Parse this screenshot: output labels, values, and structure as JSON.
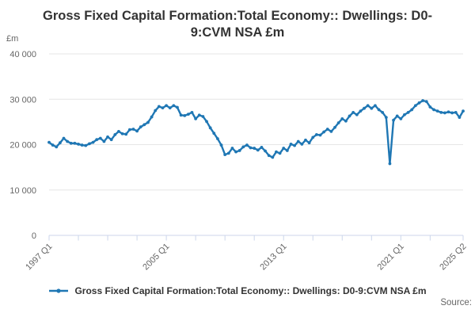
{
  "header": {
    "title": "Gross Fixed Capital Formation:Total Economy:: Dwellings: D0-9:CVM NSA £m"
  },
  "legend": {
    "label": "Gross Fixed Capital Formation:Total Economy:: Dwellings: D0-9:CVM NSA £m",
    "marker": "line-with-dot"
  },
  "footer": {
    "source_label": "Source:"
  },
  "colors": {
    "series": "#1f77b4",
    "gridline": "#e6e6e6",
    "axis_line": "#ccd6eb",
    "tick_label": "#666666",
    "title_text": "#333333"
  },
  "chart_data": {
    "type": "line",
    "title": "Gross Fixed Capital Formation:Total Economy:: Dwellings: D0-9:CVM NSA £m",
    "xlabel": "",
    "ylabel": "£m",
    "grid": "horizontal",
    "legend_position": "bottom",
    "y_axis": {
      "title": "£m",
      "min": 0,
      "max": 40000,
      "tick_interval": 10000,
      "tick_values": [
        0,
        10000,
        20000,
        30000,
        40000
      ],
      "tick_labels": [
        "0",
        "10 000",
        "20 000",
        "30 000",
        "40 000"
      ]
    },
    "x_axis": {
      "start": "1997 Q1",
      "end": "2025 Q2",
      "minor_tick_every_quarters": 8,
      "tick_indices": [
        0,
        8,
        16,
        24,
        32,
        40,
        48,
        56,
        64,
        72,
        80,
        88,
        96,
        104,
        113
      ],
      "labeled_ticks": [
        {
          "index": 0,
          "label": "1997 Q1"
        },
        {
          "index": 32,
          "label": "2005 Q1"
        },
        {
          "index": 64,
          "label": "2013 Q1"
        },
        {
          "index": 96,
          "label": "2021 Q1"
        },
        {
          "index": 113,
          "label": "2025 Q2"
        }
      ]
    },
    "series": [
      {
        "name": "Gross Fixed Capital Formation:Total Economy:: Dwellings: D0-9:CVM NSA £m",
        "color": "#1f77b4",
        "marker": "circle",
        "x": [
          "1997 Q1",
          "1997 Q2",
          "1997 Q3",
          "1997 Q4",
          "1998 Q1",
          "1998 Q2",
          "1998 Q3",
          "1998 Q4",
          "1999 Q1",
          "1999 Q2",
          "1999 Q3",
          "1999 Q4",
          "2000 Q1",
          "2000 Q2",
          "2000 Q3",
          "2000 Q4",
          "2001 Q1",
          "2001 Q2",
          "2001 Q3",
          "2001 Q4",
          "2002 Q1",
          "2002 Q2",
          "2002 Q3",
          "2002 Q4",
          "2003 Q1",
          "2003 Q2",
          "2003 Q3",
          "2003 Q4",
          "2004 Q1",
          "2004 Q2",
          "2004 Q3",
          "2004 Q4",
          "2005 Q1",
          "2005 Q2",
          "2005 Q3",
          "2005 Q4",
          "2006 Q1",
          "2006 Q2",
          "2006 Q3",
          "2006 Q4",
          "2007 Q1",
          "2007 Q2",
          "2007 Q3",
          "2007 Q4",
          "2008 Q1",
          "2008 Q2",
          "2008 Q3",
          "2008 Q4",
          "2009 Q1",
          "2009 Q2",
          "2009 Q3",
          "2009 Q4",
          "2010 Q1",
          "2010 Q2",
          "2010 Q3",
          "2010 Q4",
          "2011 Q1",
          "2011 Q2",
          "2011 Q3",
          "2011 Q4",
          "2012 Q1",
          "2012 Q2",
          "2012 Q3",
          "2012 Q4",
          "2013 Q1",
          "2013 Q2",
          "2013 Q3",
          "2013 Q4",
          "2014 Q1",
          "2014 Q2",
          "2014 Q3",
          "2014 Q4",
          "2015 Q1",
          "2015 Q2",
          "2015 Q3",
          "2015 Q4",
          "2016 Q1",
          "2016 Q2",
          "2016 Q3",
          "2016 Q4",
          "2017 Q1",
          "2017 Q2",
          "2017 Q3",
          "2017 Q4",
          "2018 Q1",
          "2018 Q2",
          "2018 Q3",
          "2018 Q4",
          "2019 Q1",
          "2019 Q2",
          "2019 Q3",
          "2019 Q4",
          "2020 Q1",
          "2020 Q2",
          "2020 Q3",
          "2020 Q4",
          "2021 Q1",
          "2021 Q2",
          "2021 Q3",
          "2021 Q4",
          "2022 Q1",
          "2022 Q2",
          "2022 Q3",
          "2022 Q4",
          "2023 Q1",
          "2023 Q2",
          "2023 Q3",
          "2023 Q4",
          "2024 Q1",
          "2024 Q2",
          "2024 Q3",
          "2024 Q4",
          "2025 Q1",
          "2025 Q2"
        ],
        "values": [
          20500,
          19900,
          19500,
          20400,
          21400,
          20700,
          20300,
          20300,
          20100,
          19900,
          19800,
          20200,
          20500,
          21100,
          21400,
          20700,
          21700,
          21100,
          22200,
          22900,
          22400,
          22300,
          23300,
          23400,
          23000,
          23900,
          24400,
          24900,
          26100,
          27500,
          28400,
          28100,
          28600,
          28100,
          28600,
          28200,
          26500,
          26400,
          26700,
          27100,
          25700,
          26500,
          26200,
          25100,
          23700,
          22500,
          21300,
          19900,
          17800,
          18100,
          19200,
          18400,
          18700,
          19500,
          19900,
          19300,
          19200,
          18800,
          19400,
          18600,
          17600,
          17200,
          18400,
          18100,
          19200,
          18700,
          20100,
          19800,
          20700,
          20100,
          21000,
          20400,
          21600,
          22200,
          22100,
          22800,
          23400,
          22900,
          23800,
          24800,
          25700,
          25200,
          26300,
          27100,
          26600,
          27400,
          28000,
          28600,
          28000,
          28600,
          27700,
          27100,
          26000,
          15800,
          25400,
          26300,
          25700,
          26600,
          27100,
          27700,
          28600,
          29200,
          29700,
          29500,
          28300,
          27700,
          27400,
          27100,
          27000,
          27200,
          27000,
          27100,
          26000,
          27400
        ]
      }
    ]
  }
}
